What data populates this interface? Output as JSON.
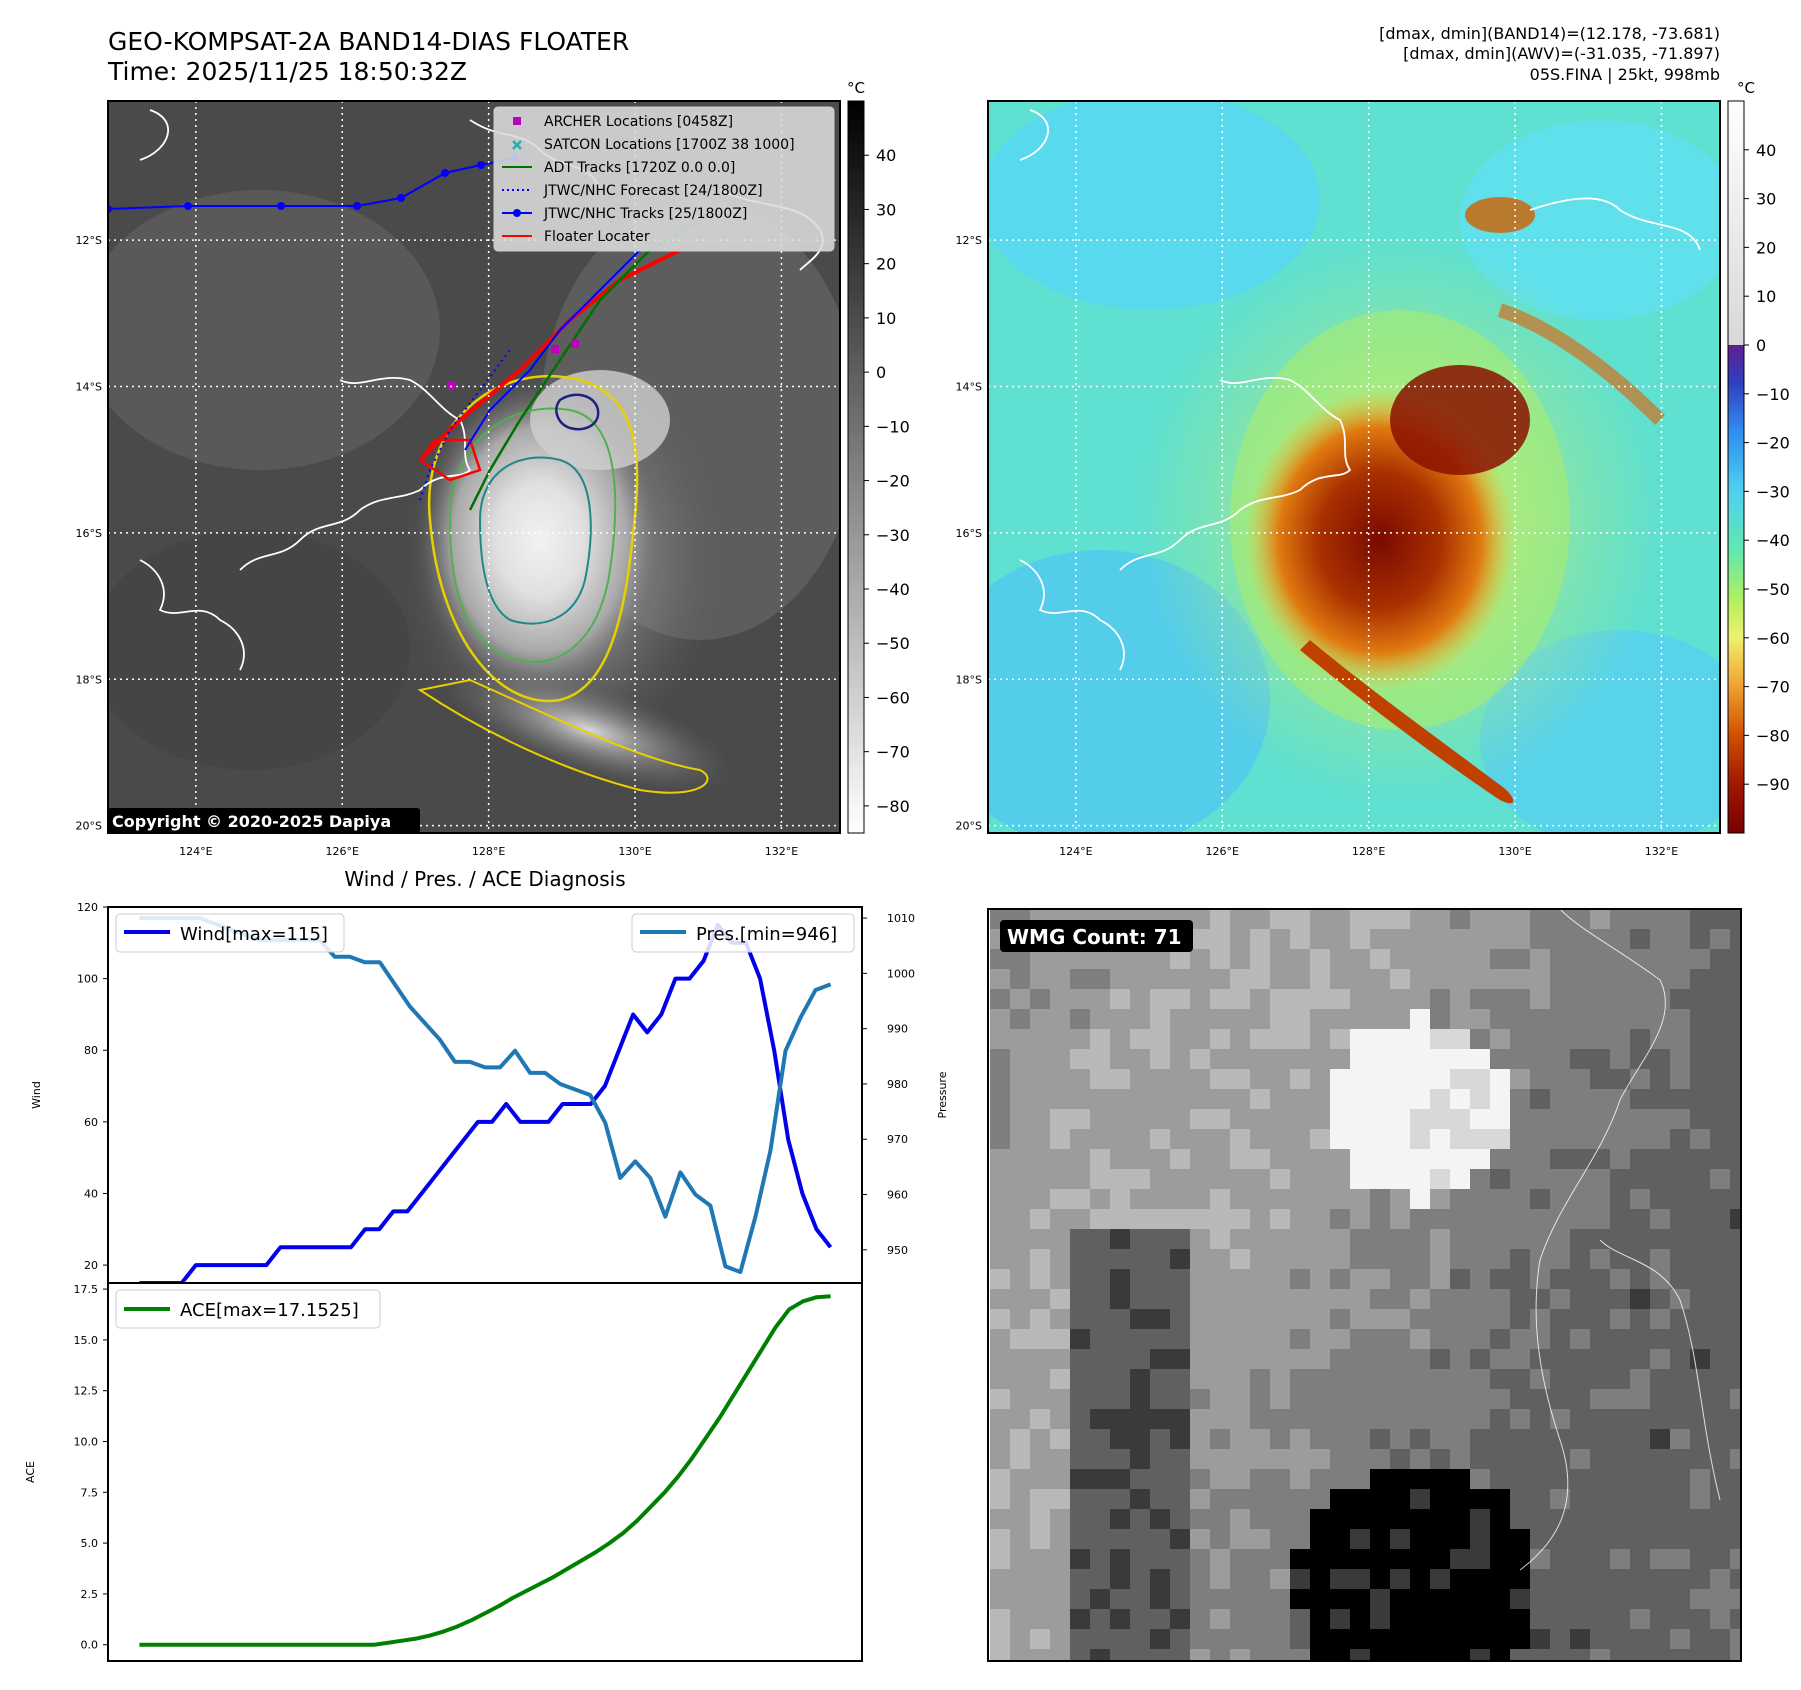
{
  "header": {
    "title_line1": "GEO-KOMPSAT-2A BAND14-DIAS FLOATER",
    "title_line2": "Time: 2025/11/25 18:50:32Z",
    "info_line1": "[dmax, dmin](BAND14)=(12.178, -73.681)",
    "info_line2": "[dmax, dmin](AWV)=(-31.035, -71.897)",
    "info_line3": "05S.FINA | 25kt, 998mb"
  },
  "map": {
    "lat_labels": [
      "12°S",
      "14°S",
      "16°S",
      "18°S",
      "20°S"
    ],
    "lat_values": [
      -12,
      -14,
      -16,
      -18,
      -20
    ],
    "lon_labels": [
      "124°E",
      "126°E",
      "128°E",
      "130°E",
      "132°E"
    ],
    "lon_values": [
      124,
      126,
      128,
      130,
      132
    ],
    "lon_range": [
      122.8,
      132.8
    ],
    "lat_range": [
      -10.1,
      -20.1
    ],
    "copyright": "Copyright © 2020-2025 Dapiya",
    "legend": [
      {
        "label": "ARCHER Locations [0458Z]",
        "color": "#c000c0",
        "marker": "square"
      },
      {
        "label": "SATCON Locations [1700Z 38 1000]",
        "color": "#20b0b0",
        "marker": "x"
      },
      {
        "label": "ADT Tracks [1720Z 0.0 0.0]",
        "color": "#007000",
        "marker": "line"
      },
      {
        "label": "JTWC/NHC Forecast [24/1800Z]",
        "color": "#0000ff",
        "marker": "dotted"
      },
      {
        "label": "JTWC/NHC Tracks [25/1800Z]",
        "color": "#0000ff",
        "marker": "line-dot"
      },
      {
        "label": "Floater Locater",
        "color": "#ff0000",
        "marker": "line"
      }
    ],
    "jtwc_track": {
      "lon": [
        122.8,
        124,
        125.2,
        126.2,
        126.8,
        127.3,
        127.8,
        128.4
      ],
      "lat": [
        -11.5,
        -11.45,
        -11.45,
        -11.45,
        -11.35,
        -11.1,
        -10.95,
        -10.85
      ]
    }
  },
  "colorbar_gray": {
    "unit": "°C",
    "ticks": [
      "40",
      "30",
      "20",
      "10",
      "0",
      "−10",
      "−20",
      "−30",
      "−40",
      "−50",
      "−60",
      "−70",
      "−80"
    ],
    "tick_values": [
      40,
      30,
      20,
      10,
      0,
      -10,
      -20,
      -30,
      -40,
      -50,
      -60,
      -70,
      -80
    ],
    "range": [
      -85,
      50
    ]
  },
  "colorbar_color": {
    "unit": "°C",
    "ticks": [
      "40",
      "30",
      "20",
      "10",
      "0",
      "−10",
      "−20",
      "−30",
      "−40",
      "−50",
      "−60",
      "−70",
      "−80",
      "−90"
    ],
    "tick_values": [
      40,
      30,
      20,
      10,
      0,
      -10,
      -20,
      -30,
      -40,
      -50,
      -60,
      -70,
      -80,
      -90
    ],
    "range": [
      -100,
      50
    ]
  },
  "chart_data": [
    {
      "type": "line",
      "title": "Wind / Pres. / ACE Diagnosis",
      "ylabel": "Wind",
      "ylabel_right": "Pressure",
      "ylim": [
        15,
        120
      ],
      "ylim_right": [
        944,
        1012
      ],
      "xlim": [
        -2,
        46
      ],
      "yticks": [
        20,
        40,
        60,
        80,
        100,
        120
      ],
      "yticks_right": [
        950,
        960,
        970,
        980,
        990,
        1000,
        1010
      ],
      "series": [
        {
          "name": "Wind",
          "legend": "Wind[max=115]",
          "color": "#0000ee",
          "axis": "left",
          "values": [
            15,
            15,
            15,
            15,
            20,
            20,
            20,
            20,
            20,
            20,
            25,
            25,
            25,
            25,
            25,
            25,
            30,
            30,
            35,
            35,
            40,
            45,
            50,
            55,
            60,
            60,
            65,
            60,
            60,
            60,
            65,
            65,
            65,
            70,
            80,
            90,
            85,
            90,
            100,
            100,
            105,
            115,
            110,
            110,
            100,
            80,
            55,
            40,
            30,
            25
          ]
        },
        {
          "name": "Pressure",
          "legend": "Pres.[min=946]",
          "color": "#1f77b4",
          "axis": "right",
          "values": [
            1010,
            1010,
            1010,
            1010,
            1010,
            1009,
            1008,
            1007,
            1006,
            1006,
            1006,
            1006,
            1006,
            1003,
            1003,
            1002,
            1002,
            998,
            994,
            991,
            988,
            984,
            984,
            983,
            983,
            986,
            982,
            982,
            980,
            979,
            978,
            973,
            963,
            966,
            963,
            956,
            964,
            960,
            958,
            947,
            946,
            956,
            968,
            986,
            992,
            997,
            998
          ]
        }
      ]
    },
    {
      "type": "line",
      "ylabel": "ACE",
      "ylim": [
        -0.8,
        17.8
      ],
      "xlim": [
        -2,
        46
      ],
      "yticks": [
        "0.0",
        "2.5",
        "5.0",
        "7.5",
        "10.0",
        "12.5",
        "15.0",
        "17.5"
      ],
      "ytick_values": [
        0,
        2.5,
        5,
        7.5,
        10,
        12.5,
        15,
        17.5
      ],
      "series": [
        {
          "name": "ACE",
          "legend": "ACE[max=17.1525]",
          "color": "#008000",
          "values": [
            0,
            0,
            0,
            0,
            0,
            0,
            0,
            0,
            0,
            0,
            0,
            0,
            0,
            0,
            0,
            0,
            0,
            0,
            0.1,
            0.2,
            0.3,
            0.45,
            0.65,
            0.9,
            1.2,
            1.55,
            1.9,
            2.3,
            2.65,
            3.0,
            3.35,
            3.75,
            4.15,
            4.55,
            5.0,
            5.5,
            6.1,
            6.8,
            7.5,
            8.3,
            9.2,
            10.2,
            11.2,
            12.3,
            13.4,
            14.5,
            15.6,
            16.5,
            16.9,
            17.1,
            17.15
          ]
        }
      ]
    }
  ],
  "wmg": {
    "label": "WMG Count: 71"
  }
}
